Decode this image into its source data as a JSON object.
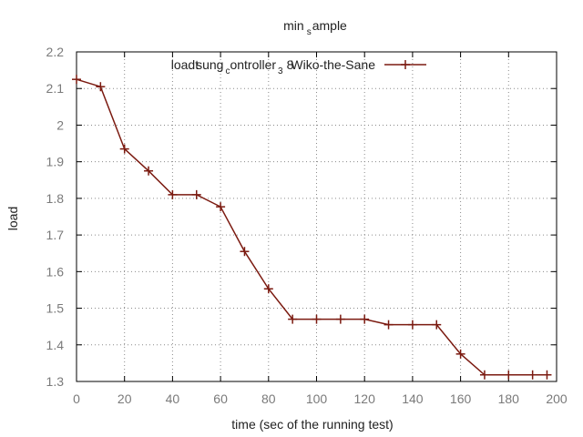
{
  "chart_data": {
    "type": "line",
    "title": {
      "base": "min",
      "sub": "s",
      "rest": "ample"
    },
    "xlabel": "time (sec of the running test)",
    "ylabel": "load",
    "xlim": [
      0,
      200
    ],
    "ylim": [
      1.3,
      2.2
    ],
    "x_ticks": [
      "0",
      "20",
      "40",
      "60",
      "80",
      "100",
      "120",
      "140",
      "160",
      "180",
      "200"
    ],
    "y_ticks": [
      "1.3",
      "1.4",
      "1.5",
      "1.6",
      "1.7",
      "1.8",
      "1.9",
      "2",
      "2.1",
      "2.2"
    ],
    "grid": true,
    "legend_position": "top-right",
    "series": [
      {
        "label": {
          "a": "loadt",
          "b": "sung",
          "c": "c",
          "d": "ontroller",
          "e": "3",
          "f": "8",
          "g": "Wiko-the-Sane"
        },
        "color": "#7b1a10",
        "x": [
          0,
          10,
          20,
          30,
          40,
          50,
          60,
          70,
          80,
          90,
          100,
          110,
          120,
          130,
          140,
          150,
          160,
          170,
          180,
          190,
          196
        ],
        "y": [
          2.125,
          2.105,
          1.935,
          1.875,
          1.81,
          1.81,
          1.777,
          1.655,
          1.553,
          1.47,
          1.47,
          1.47,
          1.47,
          1.455,
          1.455,
          1.455,
          1.375,
          1.318,
          1.318,
          1.318,
          1.318
        ]
      }
    ]
  }
}
